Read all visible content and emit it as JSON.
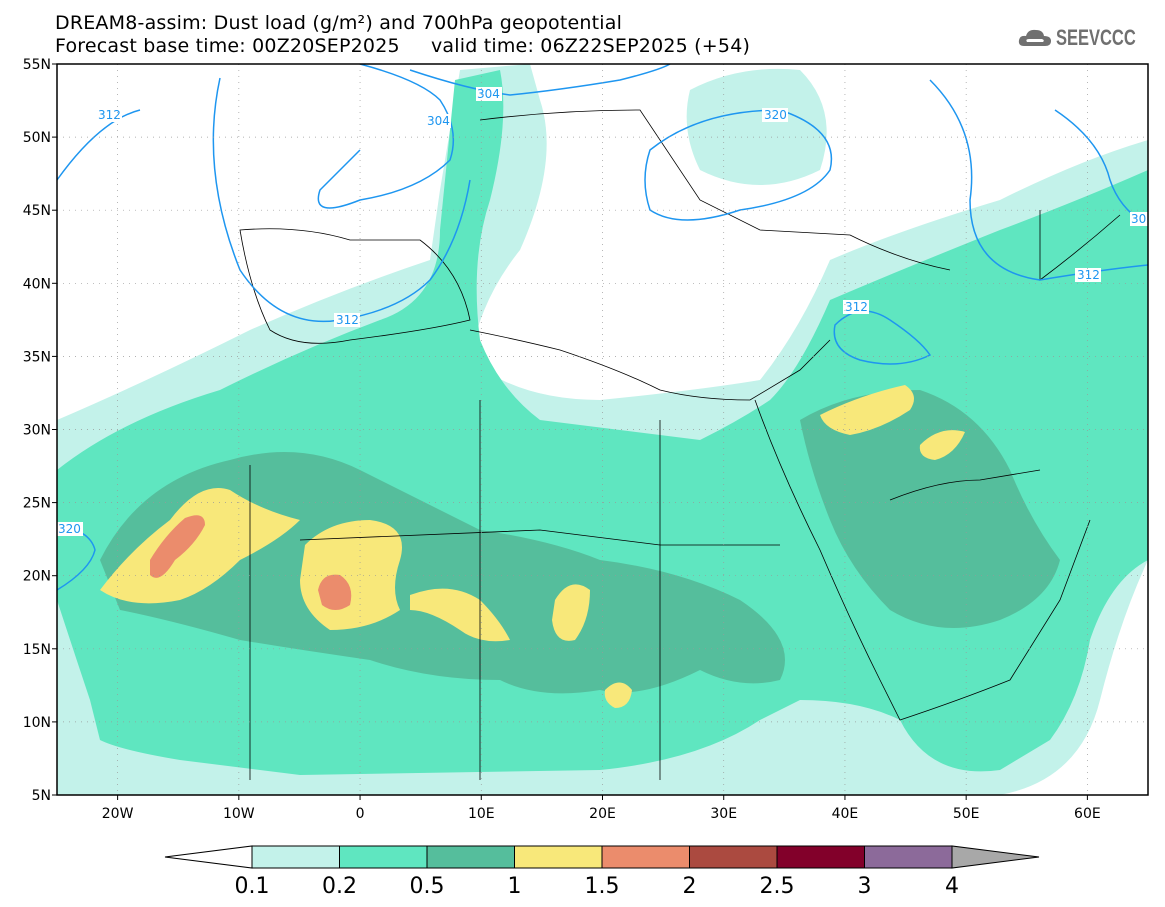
{
  "header": {
    "title": "DREAM8-assim: Dust load (g/m²) and 700hPa geopotential",
    "subtitle": "Forecast base time: 00Z20SEP2025     valid time: 06Z22SEP2025 (+54)",
    "logo_text": "SEEVCCC"
  },
  "map": {
    "lat_labels": [
      "55N",
      "50N",
      "45N",
      "40N",
      "35N",
      "30N",
      "25N",
      "20N",
      "15N",
      "10N",
      "5N"
    ],
    "lon_labels": [
      "20W",
      "10W",
      "0",
      "10E",
      "20E",
      "30E",
      "40E",
      "50E",
      "60E"
    ],
    "contour_labels": [
      "312",
      "304",
      "304",
      "320",
      "312",
      "312",
      "320",
      "312",
      "30"
    ],
    "contour_color": "#1e96f0"
  },
  "colorbar": {
    "ticks": [
      "0.1",
      "0.2",
      "0.5",
      "1",
      "1.5",
      "2",
      "2.5",
      "3",
      "4"
    ],
    "colors": [
      "#ffffff",
      "#c3f2ea",
      "#5fe6c0",
      "#55be9c",
      "#f8e87a",
      "#eb8c6c",
      "#ab4a40",
      "#82002a",
      "#8c6a9a",
      "#a8a8a8"
    ]
  }
}
